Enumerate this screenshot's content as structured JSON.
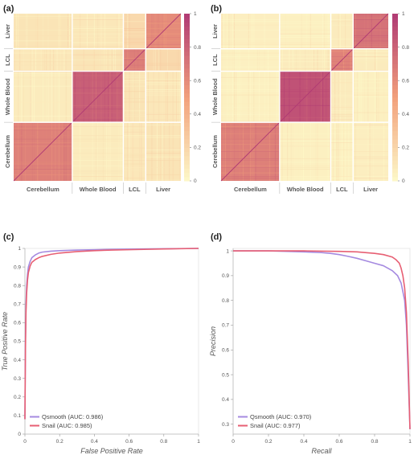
{
  "panels": [
    {
      "label": "(a)"
    },
    {
      "label": "(b)"
    },
    {
      "label": "(c)"
    },
    {
      "label": "(d)"
    }
  ],
  "colors": {
    "low": "#fdf9c9",
    "mid": "#f2a07b",
    "high": "#b03a74",
    "qsmooth": "#a58ae0",
    "snail": "#e75f73"
  },
  "chart_data": [
    {
      "type": "heatmap",
      "panel": "(a)",
      "groups": [
        "Cerebellum",
        "Whole Blood",
        "LCL",
        "Liver"
      ],
      "group_sizes": [
        110,
        96,
        42,
        66
      ],
      "block_values": [
        [
          0.65,
          0.08,
          0.1,
          0.12
        ],
        [
          0.08,
          0.82,
          0.12,
          0.1
        ],
        [
          0.1,
          0.12,
          0.66,
          0.18
        ],
        [
          0.12,
          0.1,
          0.18,
          0.6
        ]
      ],
      "colorbar": {
        "ticks": [
          "0",
          "0.2",
          "0.4",
          "0.6",
          "0.8",
          "1"
        ],
        "range": [
          0,
          1
        ]
      }
    },
    {
      "type": "heatmap",
      "panel": "(b)",
      "groups": [
        "Cerebellum",
        "Whole Blood",
        "LCL",
        "Liver"
      ],
      "group_sizes": [
        110,
        96,
        42,
        66
      ],
      "block_values": [
        [
          0.66,
          0.05,
          0.05,
          0.06
        ],
        [
          0.05,
          0.88,
          0.08,
          0.05
        ],
        [
          0.05,
          0.08,
          0.64,
          0.08
        ],
        [
          0.06,
          0.05,
          0.08,
          0.72
        ]
      ],
      "colorbar": {
        "ticks": [
          "0",
          "0.2",
          "0.4",
          "0.6",
          "0.8",
          "1"
        ],
        "range": [
          0,
          1
        ]
      }
    },
    {
      "type": "line",
      "panel": "(c)",
      "xlabel": "False Positive Rate",
      "ylabel": "True Positive Rate",
      "xlim": [
        0,
        1
      ],
      "ylim": [
        0,
        1
      ],
      "xticks": [
        "0",
        "0.2",
        "0.4",
        "0.6",
        "0.8",
        "1"
      ],
      "yticks": [
        "0",
        "0.1",
        "0.2",
        "0.3",
        "0.4",
        "0.5",
        "0.6",
        "0.7",
        "0.8",
        "0.9",
        "1"
      ],
      "legend_position": "bottom-left",
      "series": [
        {
          "name": "Qsmooth (AUC: 0.986)",
          "color": "#a58ae0",
          "x": [
            0,
            0.003,
            0.006,
            0.01,
            0.015,
            0.02,
            0.03,
            0.04,
            0.06,
            0.08,
            0.1,
            0.15,
            0.2,
            0.3,
            0.4,
            0.5,
            0.6,
            0.8,
            1.0
          ],
          "y": [
            0.08,
            0.5,
            0.7,
            0.8,
            0.86,
            0.9,
            0.93,
            0.95,
            0.965,
            0.975,
            0.98,
            0.985,
            0.988,
            0.991,
            0.993,
            0.995,
            0.996,
            0.998,
            1.0
          ]
        },
        {
          "name": "Snail (AUC: 0.985)",
          "color": "#e75f73",
          "x": [
            0,
            0.003,
            0.006,
            0.01,
            0.015,
            0.02,
            0.03,
            0.04,
            0.06,
            0.08,
            0.1,
            0.15,
            0.2,
            0.3,
            0.4,
            0.5,
            0.6,
            0.8,
            1.0
          ],
          "y": [
            0.08,
            0.45,
            0.65,
            0.76,
            0.83,
            0.87,
            0.905,
            0.925,
            0.94,
            0.95,
            0.957,
            0.968,
            0.975,
            0.983,
            0.988,
            0.991,
            0.993,
            0.997,
            1.0
          ]
        }
      ]
    },
    {
      "type": "line",
      "panel": "(d)",
      "xlabel": "Recall",
      "ylabel": "Precision",
      "xlim": [
        0,
        1
      ],
      "ylim": [
        0.26,
        1.01
      ],
      "xticks": [
        "0",
        "0.2",
        "0.4",
        "0.6",
        "0.8",
        "1"
      ],
      "yticks": [
        "0.3",
        "0.4",
        "0.5",
        "0.6",
        "0.7",
        "0.8",
        "0.9",
        "1"
      ],
      "legend_position": "bottom-left",
      "series": [
        {
          "name": "Qsmooth (AUC: 0.970)",
          "color": "#a58ae0",
          "x": [
            0,
            0.1,
            0.2,
            0.3,
            0.4,
            0.5,
            0.55,
            0.6,
            0.65,
            0.7,
            0.75,
            0.8,
            0.85,
            0.9,
            0.93,
            0.95,
            0.97,
            0.98,
            0.99,
            1.0
          ],
          "y": [
            1.0,
            1.0,
            1.0,
            0.998,
            0.996,
            0.993,
            0.99,
            0.985,
            0.978,
            0.97,
            0.96,
            0.95,
            0.94,
            0.92,
            0.9,
            0.87,
            0.8,
            0.7,
            0.5,
            0.28
          ]
        },
        {
          "name": "Snail (AUC: 0.977)",
          "color": "#e75f73",
          "x": [
            0,
            0.1,
            0.2,
            0.3,
            0.4,
            0.5,
            0.6,
            0.7,
            0.8,
            0.85,
            0.9,
            0.92,
            0.94,
            0.95,
            0.96,
            0.97,
            0.98,
            0.99,
            1.0
          ],
          "y": [
            1.0,
            1.0,
            1.0,
            1.0,
            1.0,
            0.999,
            0.998,
            0.996,
            0.99,
            0.985,
            0.975,
            0.965,
            0.95,
            0.93,
            0.9,
            0.85,
            0.75,
            0.55,
            0.28
          ]
        }
      ]
    }
  ]
}
